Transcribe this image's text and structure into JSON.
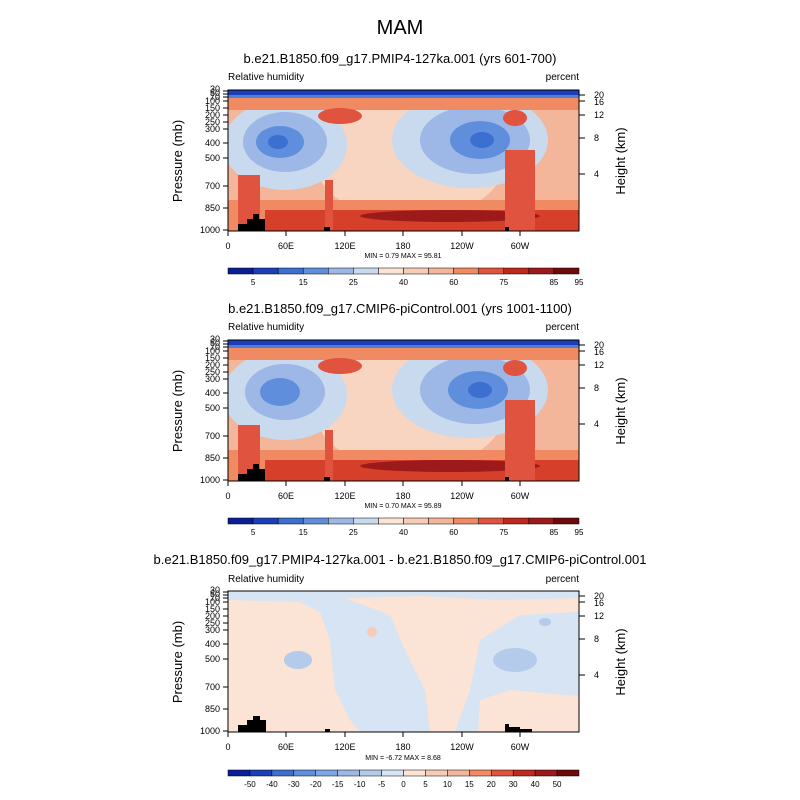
{
  "figure": {
    "title": "MAM"
  },
  "chart_data": [
    {
      "type": "heatmap",
      "title": "b.e21.B1850.f09_g17.PMIP4-127ka.001 (yrs 601-700)",
      "left_label": "Relative humidity",
      "right_label": "percent",
      "ylabel": "Pressure (mb)",
      "ylabel_right": "Height (km)",
      "x_ticks": [
        "0",
        "60E",
        "120E",
        "180",
        "120W",
        "60W"
      ],
      "y_ticks": [
        "1000",
        "850",
        "700",
        "500",
        "400",
        "300",
        "250",
        "200",
        "150",
        "100",
        "70",
        "50",
        "30"
      ],
      "y_ticks_right": [
        "20",
        "16",
        "12",
        "8",
        "4"
      ],
      "stats": "MIN =   0.79  MAX =  95.81",
      "colorbar_labels": [
        "5",
        "15",
        "25",
        "40",
        "60",
        "75",
        "85",
        "95"
      ]
    },
    {
      "type": "heatmap",
      "title": "b.e21.B1850.f09_g17.CMIP6-piControl.001 (yrs 1001-1100)",
      "left_label": "Relative humidity",
      "right_label": "percent",
      "ylabel": "Pressure (mb)",
      "ylabel_right": "Height (km)",
      "x_ticks": [
        "0",
        "60E",
        "120E",
        "180",
        "120W",
        "60W"
      ],
      "y_ticks": [
        "1000",
        "850",
        "700",
        "500",
        "400",
        "300",
        "250",
        "200",
        "150",
        "100",
        "70",
        "50",
        "30"
      ],
      "y_ticks_right": [
        "20",
        "16",
        "12",
        "8",
        "4"
      ],
      "stats": "MIN =   0.70  MAX =  95.89",
      "colorbar_labels": [
        "5",
        "15",
        "25",
        "40",
        "60",
        "75",
        "85",
        "95"
      ]
    },
    {
      "type": "heatmap",
      "title": "b.e21.B1850.f09_g17.PMIP4-127ka.001 - b.e21.B1850.f09_g17.CMIP6-piControl.001",
      "left_label": "Relative humidity",
      "right_label": "percent",
      "ylabel": "Pressure (mb)",
      "ylabel_right": "Height (km)",
      "x_ticks": [
        "0",
        "60E",
        "120E",
        "180",
        "120W",
        "60W"
      ],
      "y_ticks": [
        "1000",
        "850",
        "700",
        "500",
        "400",
        "300",
        "250",
        "200",
        "150",
        "100",
        "70",
        "50",
        "30"
      ],
      "y_ticks_right": [
        "20",
        "16",
        "12",
        "8",
        "4"
      ],
      "stats": "MIN =  -6.72  MAX =   8.68",
      "colorbar_labels": [
        "-50",
        "-40",
        "-30",
        "-20",
        "-15",
        "-10",
        "-5",
        "0",
        "5",
        "10",
        "15",
        "20",
        "30",
        "40",
        "50"
      ]
    }
  ]
}
